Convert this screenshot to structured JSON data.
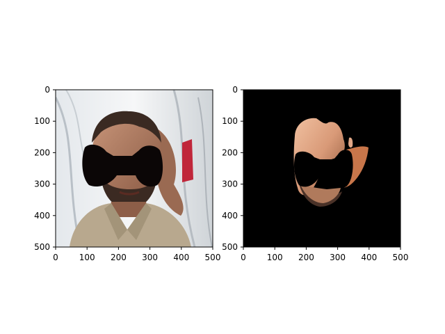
{
  "figure": {
    "panels": [
      {
        "name": "left-panel",
        "image": "photo of man with black mask over eyes",
        "xticks": [
          "0",
          "100",
          "200",
          "300",
          "400",
          "500"
        ],
        "yticks": [
          "0",
          "100",
          "200",
          "300",
          "400",
          "500"
        ]
      },
      {
        "name": "right-panel",
        "image": "segmented skin region on black background",
        "xticks": [
          "0",
          "100",
          "200",
          "300",
          "400",
          "500"
        ],
        "yticks": [
          "0",
          "100",
          "200",
          "300",
          "400",
          "500"
        ]
      }
    ]
  }
}
